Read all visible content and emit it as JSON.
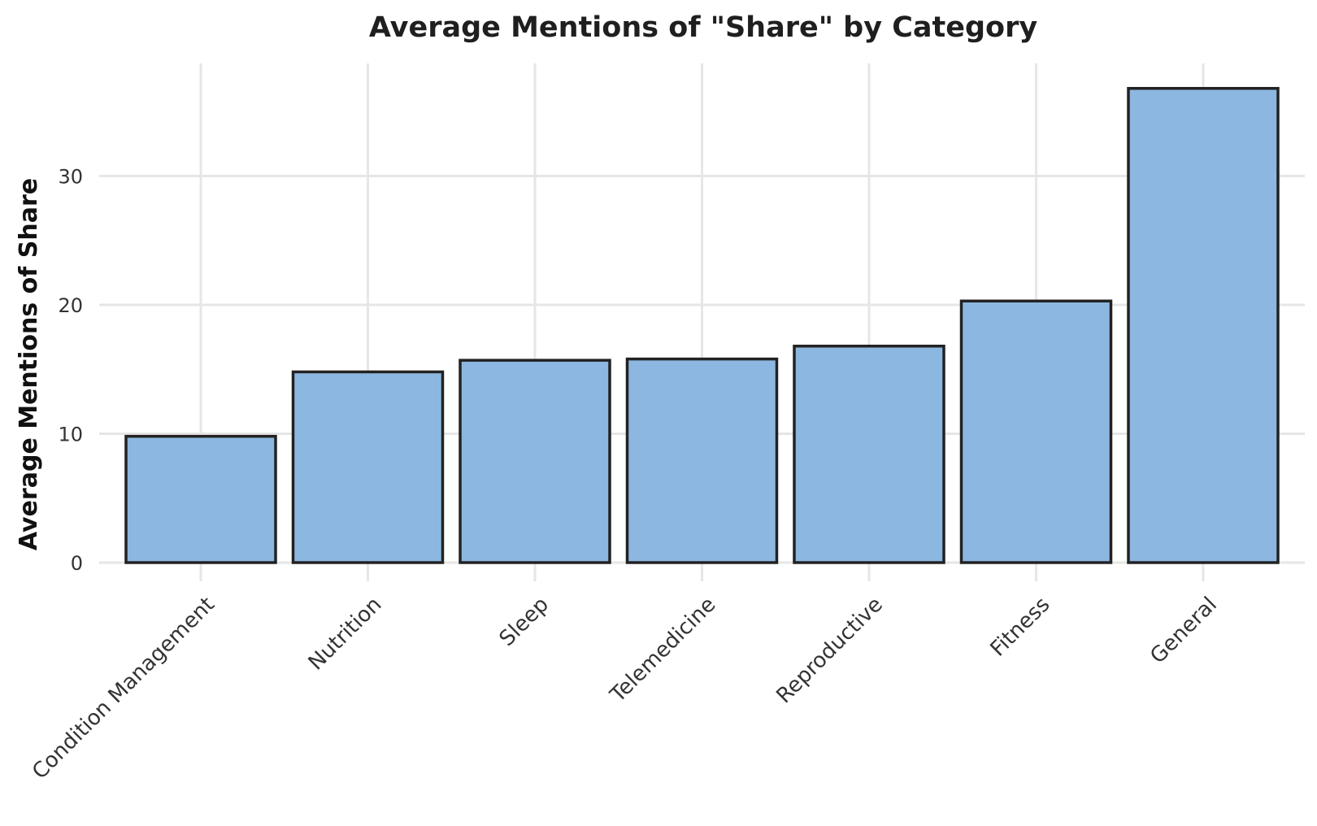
{
  "chart_data": {
    "type": "bar",
    "title": "Average Mentions of \"Share\" by Category",
    "xlabel": "",
    "ylabel": "Average Mentions of Share",
    "categories": [
      "Condition Management",
      "Nutrition",
      "Sleep",
      "Telemedicine",
      "Reproductive",
      "Fitness",
      "General"
    ],
    "values": [
      9.8,
      14.8,
      15.7,
      15.8,
      16.8,
      20.3,
      36.8
    ],
    "yticks": [
      0,
      10,
      20,
      30
    ],
    "ytick_labels": [
      "0",
      "10",
      "20",
      "30"
    ],
    "ylim": [
      0,
      38.7
    ],
    "grid": true,
    "colors": {
      "bar_fill": "#8cb7e0",
      "bar_edge": "#222222",
      "grid": "#e6e6e6"
    }
  }
}
